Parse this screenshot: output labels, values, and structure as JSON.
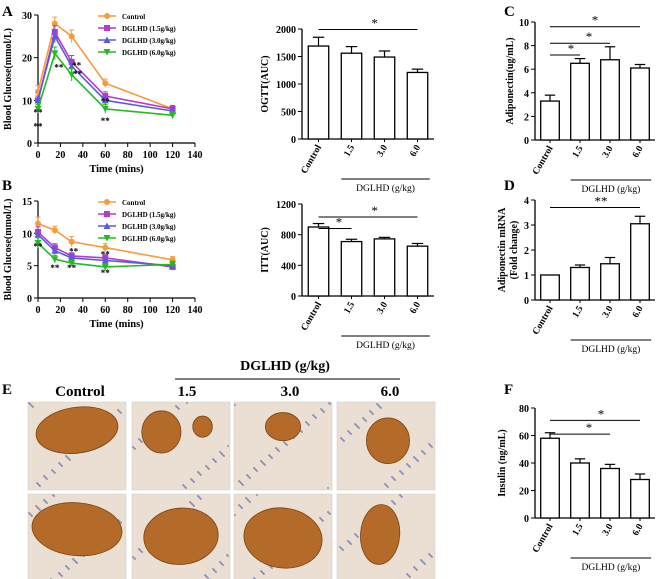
{
  "panel_labels": {
    "A": "A",
    "B": "B",
    "C": "C",
    "D": "D",
    "E": "E",
    "F": "F"
  },
  "colors": {
    "control": "#f79b3c",
    "low": "#b43cc8",
    "mid": "#5a5ae0",
    "high": "#22bb22",
    "bar": "#ffffff",
    "axis": "#000000",
    "tissue": "#eadfd2",
    "islet": "#b46a28"
  },
  "legend_labels": [
    "Control",
    "DGLHD (1.5g/kg)",
    "DGLHD (3.0g/kg)",
    "DGLHD (6.0g/kg)"
  ],
  "group_title": "DGLHD (g/kg)",
  "micro": {
    "column_labels": [
      "Control",
      "1.5",
      "3.0",
      "6.0"
    ]
  },
  "chart_data": [
    {
      "id": "A_left",
      "type": "line",
      "title": "",
      "xlabel": "Time (mins)",
      "ylabel": "Blood Glucose(mmol/L)",
      "xlim": [
        0,
        140
      ],
      "ylim": [
        0,
        30
      ],
      "xticks": [
        "0",
        "20",
        "40",
        "60",
        "80",
        "100",
        "120",
        "140"
      ],
      "yticks": [
        "0",
        "10",
        "20",
        "30"
      ],
      "x": [
        0,
        15,
        30,
        60,
        120
      ],
      "series": [
        {
          "name": "Control",
          "values": [
            12,
            28,
            25,
            14,
            8
          ],
          "err": [
            1.5,
            1.5,
            1.5,
            1,
            0.8
          ]
        },
        {
          "name": "DGLHD (1.5g/kg)",
          "values": [
            10,
            26,
            19,
            11,
            8
          ],
          "err": [
            1,
            1.5,
            1.5,
            1,
            0.8
          ]
        },
        {
          "name": "DGLHD (3.0g/kg)",
          "values": [
            10,
            25,
            18,
            10,
            7.5
          ],
          "err": [
            1,
            1.5,
            1.5,
            1,
            0.8
          ]
        },
        {
          "name": "DGLHD (6.0g/kg)",
          "values": [
            8,
            21,
            16,
            8,
            6.5
          ],
          "err": [
            1,
            1.5,
            1.5,
            1,
            0.8
          ]
        }
      ],
      "annotations": [
        "**",
        "**",
        "**",
        "**",
        "**",
        "**",
        "**"
      ]
    },
    {
      "id": "A_right",
      "type": "bar",
      "ylabel": "OGTT(AUC)",
      "categories": [
        "Control",
        "1.5",
        "3.0",
        "6.0"
      ],
      "values": [
        1690,
        1560,
        1490,
        1210
      ],
      "err": [
        160,
        120,
        110,
        60
      ],
      "ylim": [
        0,
        2000
      ],
      "yticks": [
        "0",
        "500",
        "1000",
        "1500",
        "2000"
      ],
      "xlabel": "DGLHD (g/kg)",
      "sig": [
        "*"
      ]
    },
    {
      "id": "C",
      "type": "bar",
      "ylabel": "Adiponectin(ug/mL)",
      "categories": [
        "Control",
        "1.5",
        "3.0",
        "6.0"
      ],
      "values": [
        3.3,
        6.5,
        6.8,
        6.1
      ],
      "err": [
        0.5,
        0.4,
        1.1,
        0.3
      ],
      "ylim": [
        0,
        10
      ],
      "yticks": [
        "0",
        "2",
        "4",
        "6",
        "8",
        "10"
      ],
      "xlabel": "DGLHD (g/kg)",
      "sig": [
        "*",
        "*",
        "*"
      ]
    },
    {
      "id": "B_left",
      "type": "line",
      "title": "",
      "xlabel": "Time (mins)",
      "ylabel": "Blood Glucose(mmol/L)",
      "xlim": [
        0,
        140
      ],
      "ylim": [
        0,
        15
      ],
      "xticks": [
        "0",
        "20",
        "40",
        "60",
        "80",
        "100",
        "120",
        "140"
      ],
      "yticks": [
        "0",
        "5",
        "10",
        "15"
      ],
      "x": [
        0,
        15,
        30,
        60,
        120
      ],
      "series": [
        {
          "name": "Control",
          "values": [
            11.5,
            10.5,
            8.7,
            7.8,
            5.9
          ],
          "err": [
            1,
            0.6,
            0.8,
            0.6,
            0.5
          ]
        },
        {
          "name": "DGLHD (1.5g/kg)",
          "values": [
            10.2,
            7.8,
            6.5,
            6.2,
            4.8
          ],
          "err": [
            0.8,
            0.6,
            0.5,
            0.5,
            0.5
          ]
        },
        {
          "name": "DGLHD (3.0g/kg)",
          "values": [
            9.8,
            7.3,
            6.2,
            5.8,
            5
          ],
          "err": [
            0.8,
            0.6,
            0.5,
            0.5,
            0.5
          ]
        },
        {
          "name": "DGLHD (6.0g/kg)",
          "values": [
            8.5,
            6.0,
            5.4,
            4.8,
            5.2
          ],
          "err": [
            0.8,
            0.6,
            0.5,
            0.5,
            0.5
          ]
        }
      ],
      "annotations": [
        "**",
        "**",
        "**",
        "**",
        "**",
        "**"
      ]
    },
    {
      "id": "B_right",
      "type": "bar",
      "ylabel": "ITT(AUC)",
      "categories": [
        "Control",
        "1.5",
        "3.0",
        "6.0"
      ],
      "values": [
        900,
        710,
        745,
        650
      ],
      "err": [
        45,
        30,
        20,
        35
      ],
      "ylim": [
        0,
        1200
      ],
      "yticks": [
        "0",
        "400",
        "800",
        "1200"
      ],
      "xlabel": "DGLHD (g/kg)",
      "sig": [
        "*",
        "*"
      ]
    },
    {
      "id": "D",
      "type": "bar",
      "ylabel": "Adiponectin mRNA\n(Fold change)",
      "categories": [
        "Control",
        "1.5",
        "3.0",
        "6.0"
      ],
      "values": [
        1.0,
        1.3,
        1.45,
        3.05
      ],
      "err": [
        0,
        0.1,
        0.25,
        0.3
      ],
      "ylim": [
        0,
        4
      ],
      "yticks": [
        "0",
        "1",
        "2",
        "3",
        "4"
      ],
      "xlabel": "DGLHD (g/kg)",
      "sig": [
        "**"
      ]
    },
    {
      "id": "F",
      "type": "bar",
      "ylabel": "Insulin (ng/mL)",
      "categories": [
        "Control",
        "1.5",
        "3.0",
        "6.0"
      ],
      "values": [
        58,
        40,
        36,
        28
      ],
      "err": [
        4,
        3,
        3,
        4
      ],
      "ylim": [
        0,
        80
      ],
      "yticks": [
        "0",
        "20",
        "40",
        "60",
        "80"
      ],
      "xlabel": "DGLHD (g/kg)",
      "sig": [
        "*",
        "*"
      ]
    }
  ]
}
